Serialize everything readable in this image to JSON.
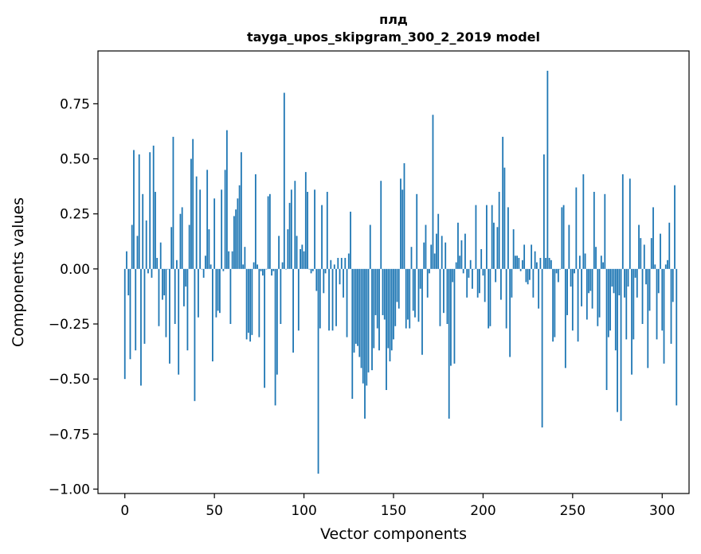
{
  "chart_data": {
    "type": "bar",
    "title_line1": "плд",
    "title_line2": "tayga_upos_skipgram_300_2_2019 model",
    "xlabel": "Vector components",
    "ylabel": "Components values",
    "xlim": [
      -15,
      315
    ],
    "ylim": [
      -1.02,
      0.99
    ],
    "xticks": [
      0,
      50,
      100,
      150,
      200,
      250,
      300
    ],
    "yticks": [
      -1.0,
      -0.75,
      -0.5,
      -0.25,
      0.0,
      0.25,
      0.5,
      0.75
    ],
    "ytick_labels": [
      "−1.00",
      "−0.75",
      "−0.50",
      "−0.25",
      "0.00",
      "0.25",
      "0.50",
      "0.75"
    ],
    "xtick_labels": [
      "0",
      "50",
      "100",
      "150",
      "200",
      "250",
      "300"
    ],
    "bar_color": "#1f77b4",
    "grid": false,
    "values": [
      -0.5,
      0.08,
      -0.12,
      -0.41,
      0.2,
      0.54,
      -0.37,
      0.15,
      0.52,
      -0.53,
      0.34,
      -0.34,
      0.22,
      -0.02,
      0.53,
      -0.04,
      0.56,
      0.35,
      0.05,
      -0.26,
      0.12,
      -0.14,
      -0.12,
      -0.31,
      0.0,
      -0.43,
      0.19,
      0.6,
      -0.25,
      0.04,
      -0.48,
      0.25,
      0.28,
      -0.17,
      -0.08,
      -0.37,
      0.2,
      0.5,
      0.59,
      -0.6,
      0.42,
      -0.22,
      0.36,
      0.0,
      -0.04,
      0.06,
      0.45,
      0.18,
      0.02,
      -0.42,
      0.32,
      -0.22,
      -0.19,
      -0.2,
      0.36,
      -0.01,
      0.45,
      0.63,
      0.08,
      -0.25,
      0.08,
      0.24,
      0.27,
      0.32,
      0.38,
      0.53,
      0.02,
      0.1,
      -0.32,
      -0.29,
      -0.33,
      -0.3,
      0.03,
      0.43,
      0.02,
      -0.31,
      -0.01,
      -0.03,
      -0.54,
      0.0,
      0.33,
      0.34,
      -0.03,
      -0.01,
      -0.62,
      -0.48,
      0.15,
      -0.25,
      0.03,
      0.8,
      0.0,
      0.18,
      0.3,
      0.36,
      -0.38,
      0.4,
      0.15,
      -0.28,
      0.09,
      0.11,
      0.08,
      0.44,
      0.35,
      0.0,
      -0.02,
      -0.01,
      0.36,
      -0.1,
      -0.93,
      -0.27,
      0.29,
      -0.11,
      -0.02,
      0.35,
      -0.28,
      0.04,
      -0.28,
      0.02,
      -0.26,
      0.05,
      -0.07,
      0.05,
      -0.13,
      0.05,
      -0.31,
      0.07,
      0.26,
      -0.59,
      -0.38,
      -0.34,
      -0.35,
      -0.4,
      -0.45,
      -0.52,
      -0.68,
      -0.53,
      -0.47,
      0.2,
      -0.46,
      -0.36,
      -0.21,
      -0.27,
      -0.37,
      0.4,
      -0.21,
      -0.23,
      -0.55,
      -0.36,
      -0.42,
      -0.37,
      -0.32,
      -0.26,
      -0.15,
      -0.18,
      0.41,
      0.36,
      0.48,
      -0.27,
      -0.23,
      -0.27,
      0.1,
      -0.19,
      -0.22,
      0.34,
      -0.24,
      -0.09,
      -0.39,
      0.12,
      0.2,
      -0.13,
      -0.02,
      0.11,
      0.7,
      0.07,
      0.16,
      0.25,
      -0.26,
      0.15,
      -0.2,
      0.12,
      -0.25,
      -0.68,
      -0.44,
      -0.06,
      -0.43,
      0.03,
      0.21,
      0.06,
      0.13,
      -0.02,
      0.16,
      -0.13,
      -0.04,
      0.04,
      -0.09,
      0.0,
      0.29,
      -0.13,
      -0.11,
      0.09,
      -0.03,
      -0.15,
      0.29,
      -0.27,
      -0.26,
      0.29,
      0.21,
      -0.06,
      0.19,
      0.35,
      -0.14,
      0.6,
      0.46,
      -0.27,
      0.28,
      -0.4,
      -0.13,
      0.18,
      0.06,
      0.06,
      0.05,
      -0.01,
      0.04,
      0.11,
      -0.06,
      -0.07,
      -0.05,
      0.11,
      -0.13,
      0.08,
      0.03,
      -0.18,
      0.05,
      -0.72,
      0.52,
      0.05,
      0.9,
      0.05,
      0.04,
      -0.33,
      -0.31,
      -0.02,
      -0.06,
      0.0,
      0.28,
      0.29,
      -0.45,
      -0.21,
      0.2,
      -0.08,
      -0.28,
      -0.02,
      0.37,
      -0.33,
      0.06,
      -0.17,
      0.43,
      0.07,
      -0.23,
      -0.11,
      -0.1,
      -0.18,
      0.35,
      0.1,
      -0.26,
      -0.22,
      0.06,
      0.03,
      0.34,
      -0.55,
      -0.31,
      -0.28,
      -0.08,
      -0.11,
      -0.37,
      -0.65,
      -0.12,
      -0.69,
      0.43,
      -0.13,
      -0.32,
      -0.08,
      0.41,
      -0.48,
      -0.32,
      -0.04,
      -0.13,
      0.2,
      0.14,
      -0.25,
      0.11,
      -0.07,
      -0.45,
      -0.19,
      0.14,
      0.28,
      0.02,
      -0.32,
      -0.11,
      0.16,
      -0.28,
      -0.43,
      0.02,
      0.04,
      0.21,
      -0.34,
      -0.15,
      0.38,
      -0.62
    ]
  }
}
